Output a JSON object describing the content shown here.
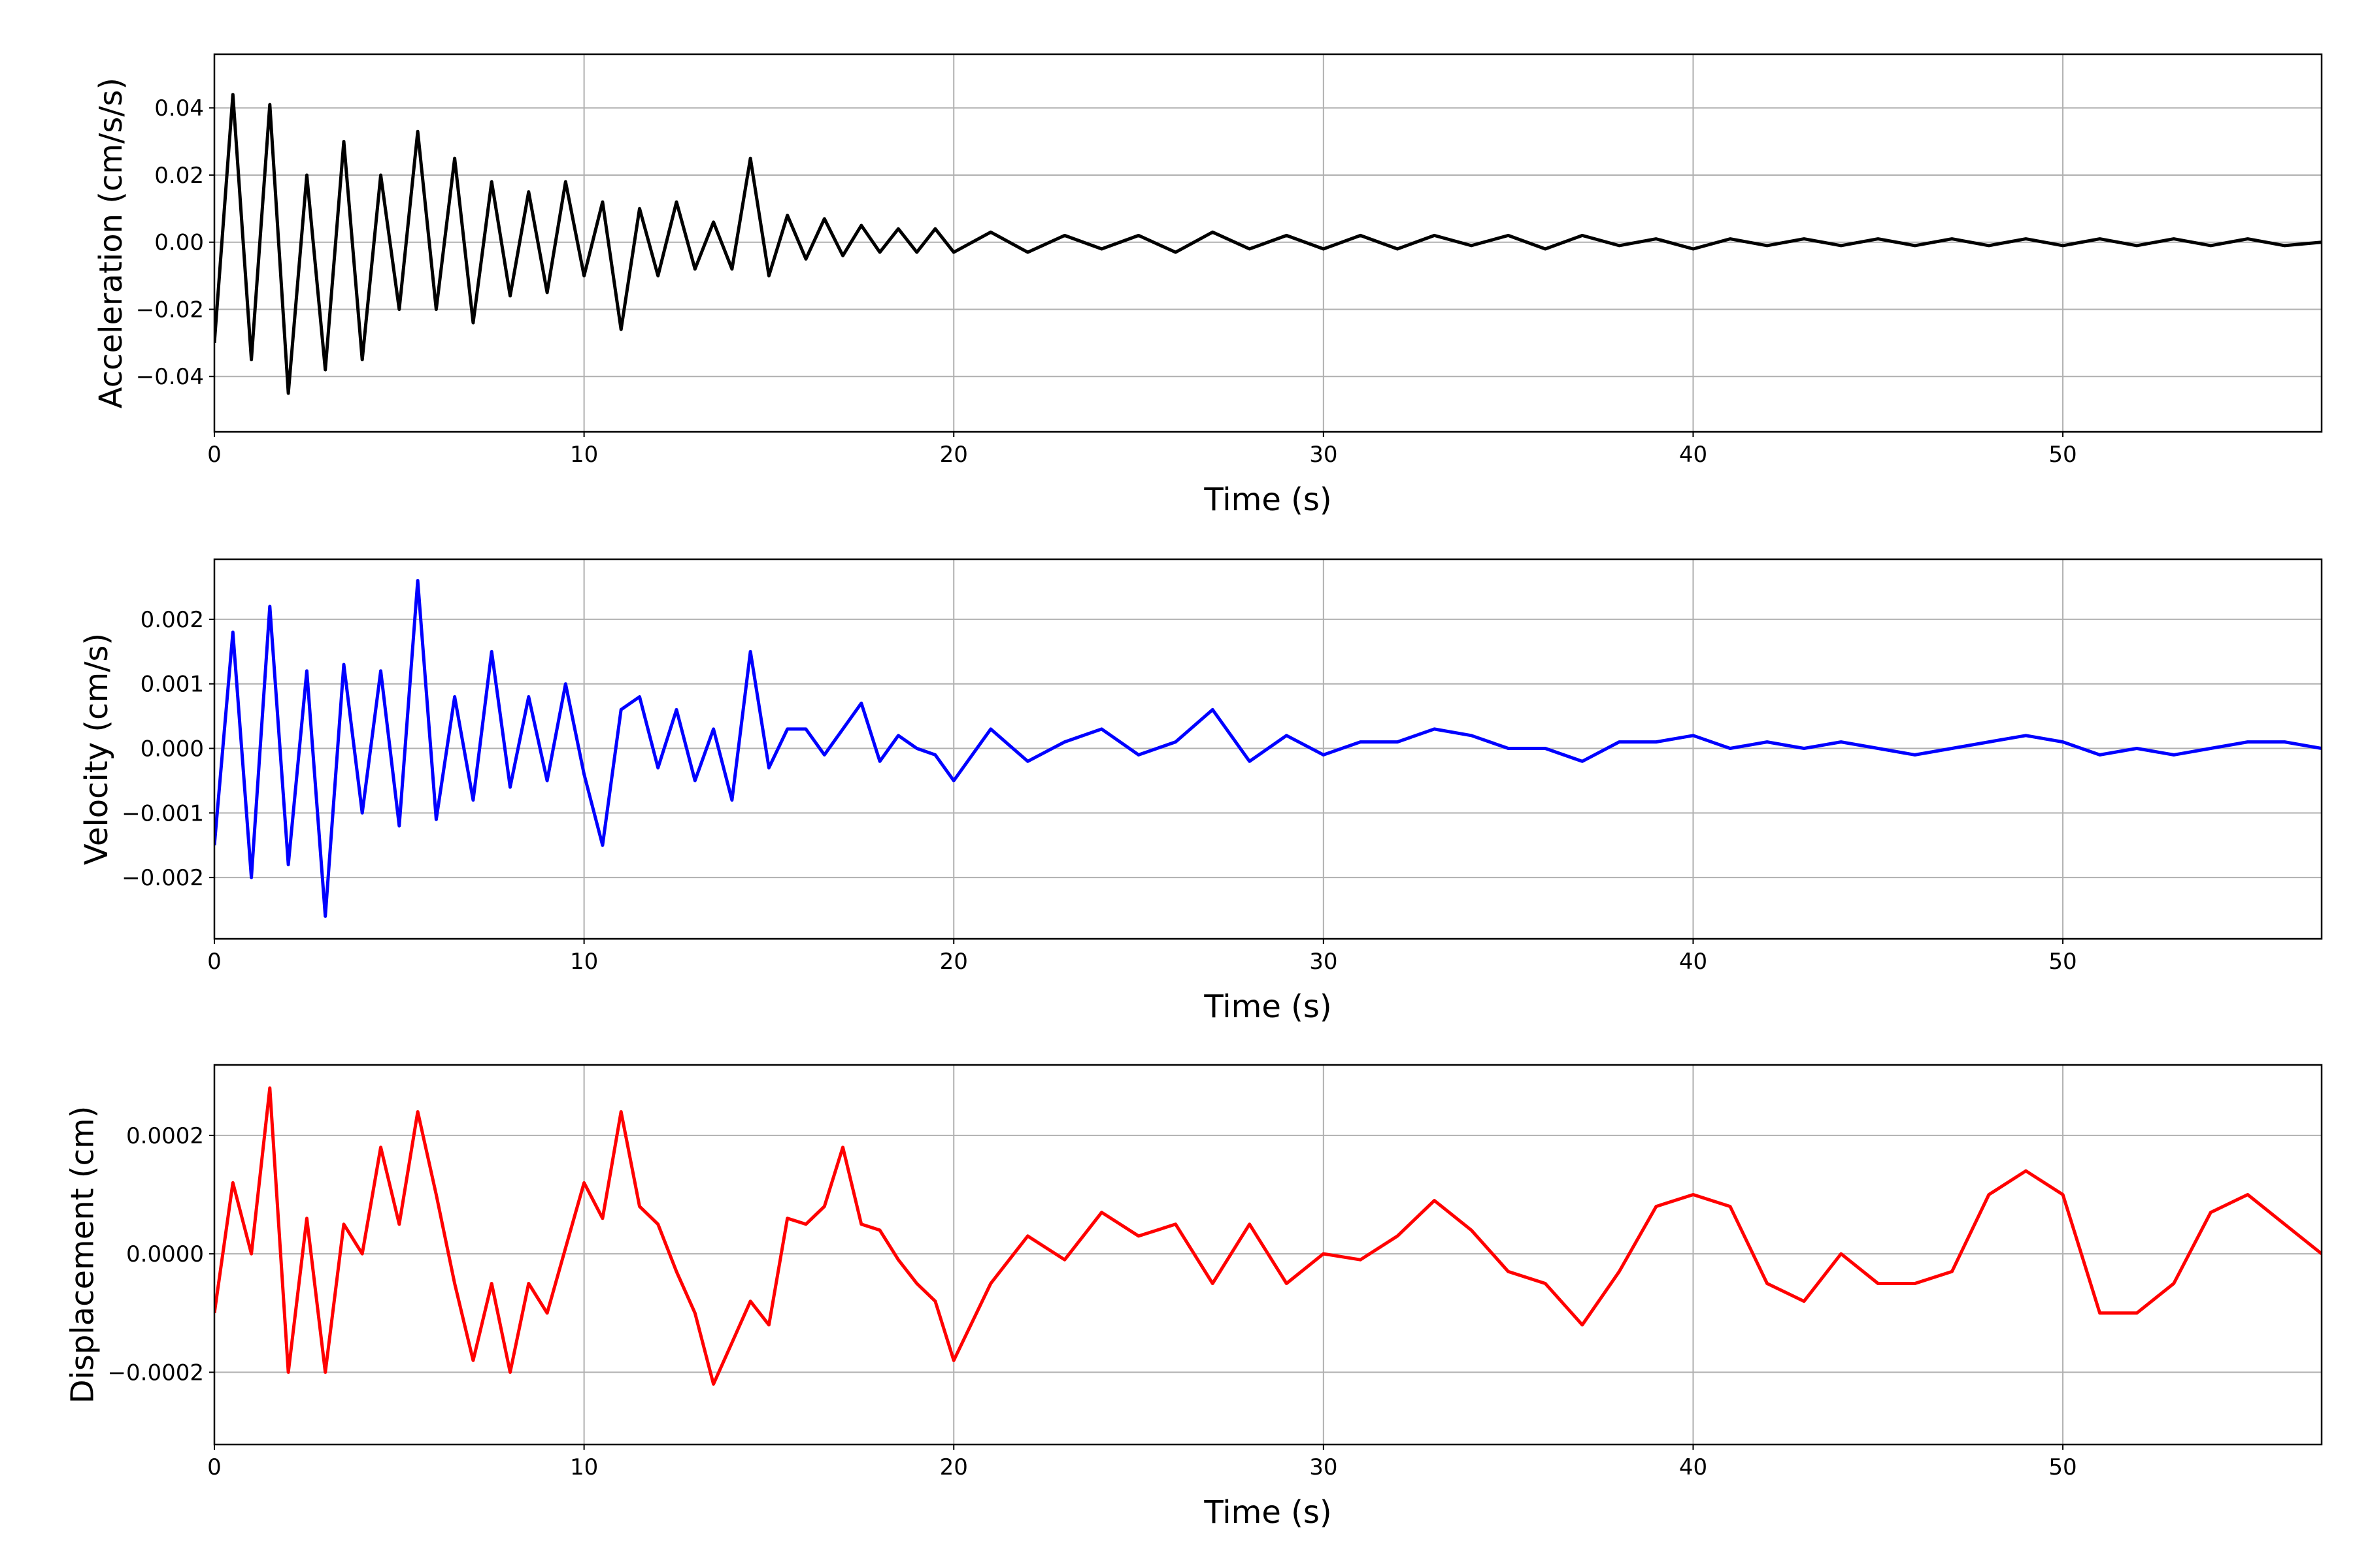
{
  "chart_data": [
    {
      "type": "line",
      "ylabel": "Acceleration (cm/s/s)",
      "xlabel": "Time (s)",
      "color": "#000000",
      "grid": true,
      "xlim": [
        0,
        57
      ],
      "xticks": [
        0,
        10,
        20,
        30,
        40,
        50
      ],
      "ylim": [
        -0.0565,
        0.056
      ],
      "yticks": [
        {
          "value": -0.04,
          "label": "−0.04"
        },
        {
          "value": -0.02,
          "label": "−0.02"
        },
        {
          "value": 0,
          "label": "0.00"
        },
        {
          "value": 0.02,
          "label": "0.02"
        },
        {
          "value": 0.04,
          "label": "0.04"
        }
      ],
      "x": [
        0,
        0.5,
        1,
        1.5,
        2,
        2.5,
        3,
        3.5,
        4,
        4.5,
        5,
        5.5,
        6,
        6.5,
        7,
        7.5,
        8,
        8.5,
        9,
        9.5,
        10,
        10.5,
        11,
        11.5,
        12,
        12.5,
        13,
        13.5,
        14,
        14.5,
        15,
        15.5,
        16,
        16.5,
        17,
        17.5,
        18,
        18.5,
        19,
        19.5,
        20,
        21,
        22,
        23,
        24,
        25,
        26,
        27,
        28,
        29,
        30,
        31,
        32,
        33,
        34,
        35,
        36,
        37,
        38,
        39,
        40,
        41,
        42,
        43,
        44,
        45,
        46,
        47,
        48,
        49,
        50,
        51,
        52,
        53,
        54,
        55,
        56,
        57
      ],
      "values": [
        -0.03,
        0.044,
        -0.035,
        0.041,
        -0.045,
        0.02,
        -0.038,
        0.03,
        -0.035,
        0.02,
        -0.02,
        0.033,
        -0.02,
        0.025,
        -0.024,
        0.018,
        -0.016,
        0.015,
        -0.015,
        0.018,
        -0.01,
        0.012,
        -0.026,
        0.01,
        -0.01,
        0.012,
        -0.008,
        0.006,
        -0.008,
        0.025,
        -0.01,
        0.008,
        -0.005,
        0.007,
        -0.004,
        0.005,
        -0.003,
        0.004,
        -0.003,
        0.004,
        -0.003,
        0.003,
        -0.003,
        0.002,
        -0.002,
        0.002,
        -0.003,
        0.003,
        -0.002,
        0.002,
        -0.002,
        0.002,
        -0.002,
        0.002,
        -0.001,
        0.002,
        -0.002,
        0.002,
        -0.001,
        0.001,
        -0.002,
        0.001,
        -0.001,
        0.001,
        -0.001,
        0.001,
        -0.001,
        0.001,
        -0.001,
        0.001,
        -0.001,
        0.001,
        -0.001,
        0.001,
        -0.001,
        0.001,
        -0.001,
        0
      ]
    },
    {
      "type": "line",
      "ylabel": "Velocity (cm/s)",
      "xlabel": "Time (s)",
      "color": "#0000ff",
      "grid": true,
      "xlim": [
        0,
        57
      ],
      "xticks": [
        0,
        10,
        20,
        30,
        40,
        50
      ],
      "ylim": [
        -0.00295,
        0.00293
      ],
      "yticks": [
        {
          "value": -0.002,
          "label": "−0.002"
        },
        {
          "value": -0.001,
          "label": "−0.001"
        },
        {
          "value": 0,
          "label": "0.000"
        },
        {
          "value": 0.001,
          "label": "0.001"
        },
        {
          "value": 0.002,
          "label": "0.002"
        }
      ],
      "x": [
        0,
        0.5,
        1,
        1.5,
        2,
        2.5,
        3,
        3.5,
        4,
        4.5,
        5,
        5.5,
        6,
        6.5,
        7,
        7.5,
        8,
        8.5,
        9,
        9.5,
        10,
        10.5,
        11,
        11.5,
        12,
        12.5,
        13,
        13.5,
        14,
        14.5,
        15,
        15.5,
        16,
        16.5,
        17,
        17.5,
        18,
        18.5,
        19,
        19.5,
        20,
        21,
        22,
        23,
        24,
        25,
        26,
        27,
        28,
        29,
        30,
        31,
        32,
        33,
        34,
        35,
        36,
        37,
        38,
        39,
        40,
        41,
        42,
        43,
        44,
        45,
        46,
        47,
        48,
        49,
        50,
        51,
        52,
        53,
        54,
        55,
        56,
        57
      ],
      "values": [
        -0.0015,
        0.0018,
        -0.002,
        0.0022,
        -0.0018,
        0.0012,
        -0.0026,
        0.0013,
        -0.001,
        0.0012,
        -0.0012,
        0.0026,
        -0.0011,
        0.0008,
        -0.0008,
        0.0015,
        -0.0006,
        0.0008,
        -0.0005,
        0.001,
        -0.0004,
        -0.0015,
        0.0006,
        0.0008,
        -0.0003,
        0.0006,
        -0.0005,
        0.0003,
        -0.0008,
        0.0015,
        -0.0003,
        0.0003,
        0.0003,
        -0.0001,
        0.0003,
        0.0007,
        -0.0002,
        0.0002,
        0,
        -0.0001,
        -0.0005,
        0.0003,
        -0.0002,
        0.0001,
        0.0003,
        -0.0001,
        0.0001,
        0.0006,
        -0.0002,
        0.0002,
        -0.0001,
        0.0001,
        0.0001,
        0.0003,
        0.0002,
        0,
        0,
        -0.0002,
        0.0001,
        0.0001,
        0.0002,
        0,
        0.0001,
        0,
        0.0001,
        0,
        -0.0001,
        0,
        0.0001,
        0.0002,
        0.0001,
        -0.0001,
        0,
        -0.0001,
        0,
        0.0001,
        0.0001,
        0
      ]
    },
    {
      "type": "line",
      "ylabel": "Displacement (cm)",
      "xlabel": "Time (s)",
      "color": "#ff0000",
      "grid": true,
      "xlim": [
        0,
        57
      ],
      "xticks": [
        0,
        10,
        20,
        30,
        40,
        50
      ],
      "ylim": [
        -0.000322,
        0.000319
      ],
      "yticks": [
        {
          "value": -0.0002,
          "label": "−0.0002"
        },
        {
          "value": 0,
          "label": "0.0000"
        },
        {
          "value": 0.0002,
          "label": "0.0002"
        }
      ],
      "x": [
        0,
        0.5,
        1,
        1.5,
        2,
        2.5,
        3,
        3.5,
        4,
        4.5,
        5,
        5.5,
        6,
        6.5,
        7,
        7.5,
        8,
        8.5,
        9,
        9.5,
        10,
        10.5,
        11,
        11.5,
        12,
        12.5,
        13,
        13.5,
        14,
        14.5,
        15,
        15.5,
        16,
        16.5,
        17,
        17.5,
        18,
        18.5,
        19,
        19.5,
        20,
        21,
        22,
        23,
        24,
        25,
        26,
        27,
        28,
        29,
        30,
        31,
        32,
        33,
        34,
        35,
        36,
        37,
        38,
        39,
        40,
        41,
        42,
        43,
        44,
        45,
        46,
        47,
        48,
        49,
        50,
        51,
        52,
        53,
        54,
        55,
        56,
        57
      ],
      "values": [
        -0.0001,
        0.00012,
        0,
        0.00028,
        -0.0002,
        6e-05,
        -0.0002,
        5e-05,
        0,
        0.00018,
        5e-05,
        0.00024,
        0.0001,
        -5e-05,
        -0.00018,
        -5e-05,
        -0.0002,
        -5e-05,
        -0.0001,
        1e-05,
        0.00012,
        6e-05,
        0.00024,
        8e-05,
        5e-05,
        -3e-05,
        -0.0001,
        -0.00022,
        -0.00015,
        -8e-05,
        -0.00012,
        6e-05,
        5e-05,
        8e-05,
        0.00018,
        5e-05,
        4e-05,
        -1e-05,
        -5e-05,
        -8e-05,
        -0.00018,
        -5e-05,
        3e-05,
        -1e-05,
        7e-05,
        3e-05,
        5e-05,
        -5e-05,
        5e-05,
        -5e-05,
        0,
        -1e-05,
        3e-05,
        9e-05,
        4e-05,
        -3e-05,
        -5e-05,
        -0.00012,
        -3e-05,
        8e-05,
        0.0001,
        8e-05,
        -5e-05,
        -8e-05,
        0,
        -5e-05,
        -5e-05,
        -3e-05,
        0.0001,
        0.00014,
        0.0001,
        -0.0001,
        -0.0001,
        -5e-05,
        7e-05,
        0.0001,
        5e-05,
        0
      ]
    }
  ]
}
